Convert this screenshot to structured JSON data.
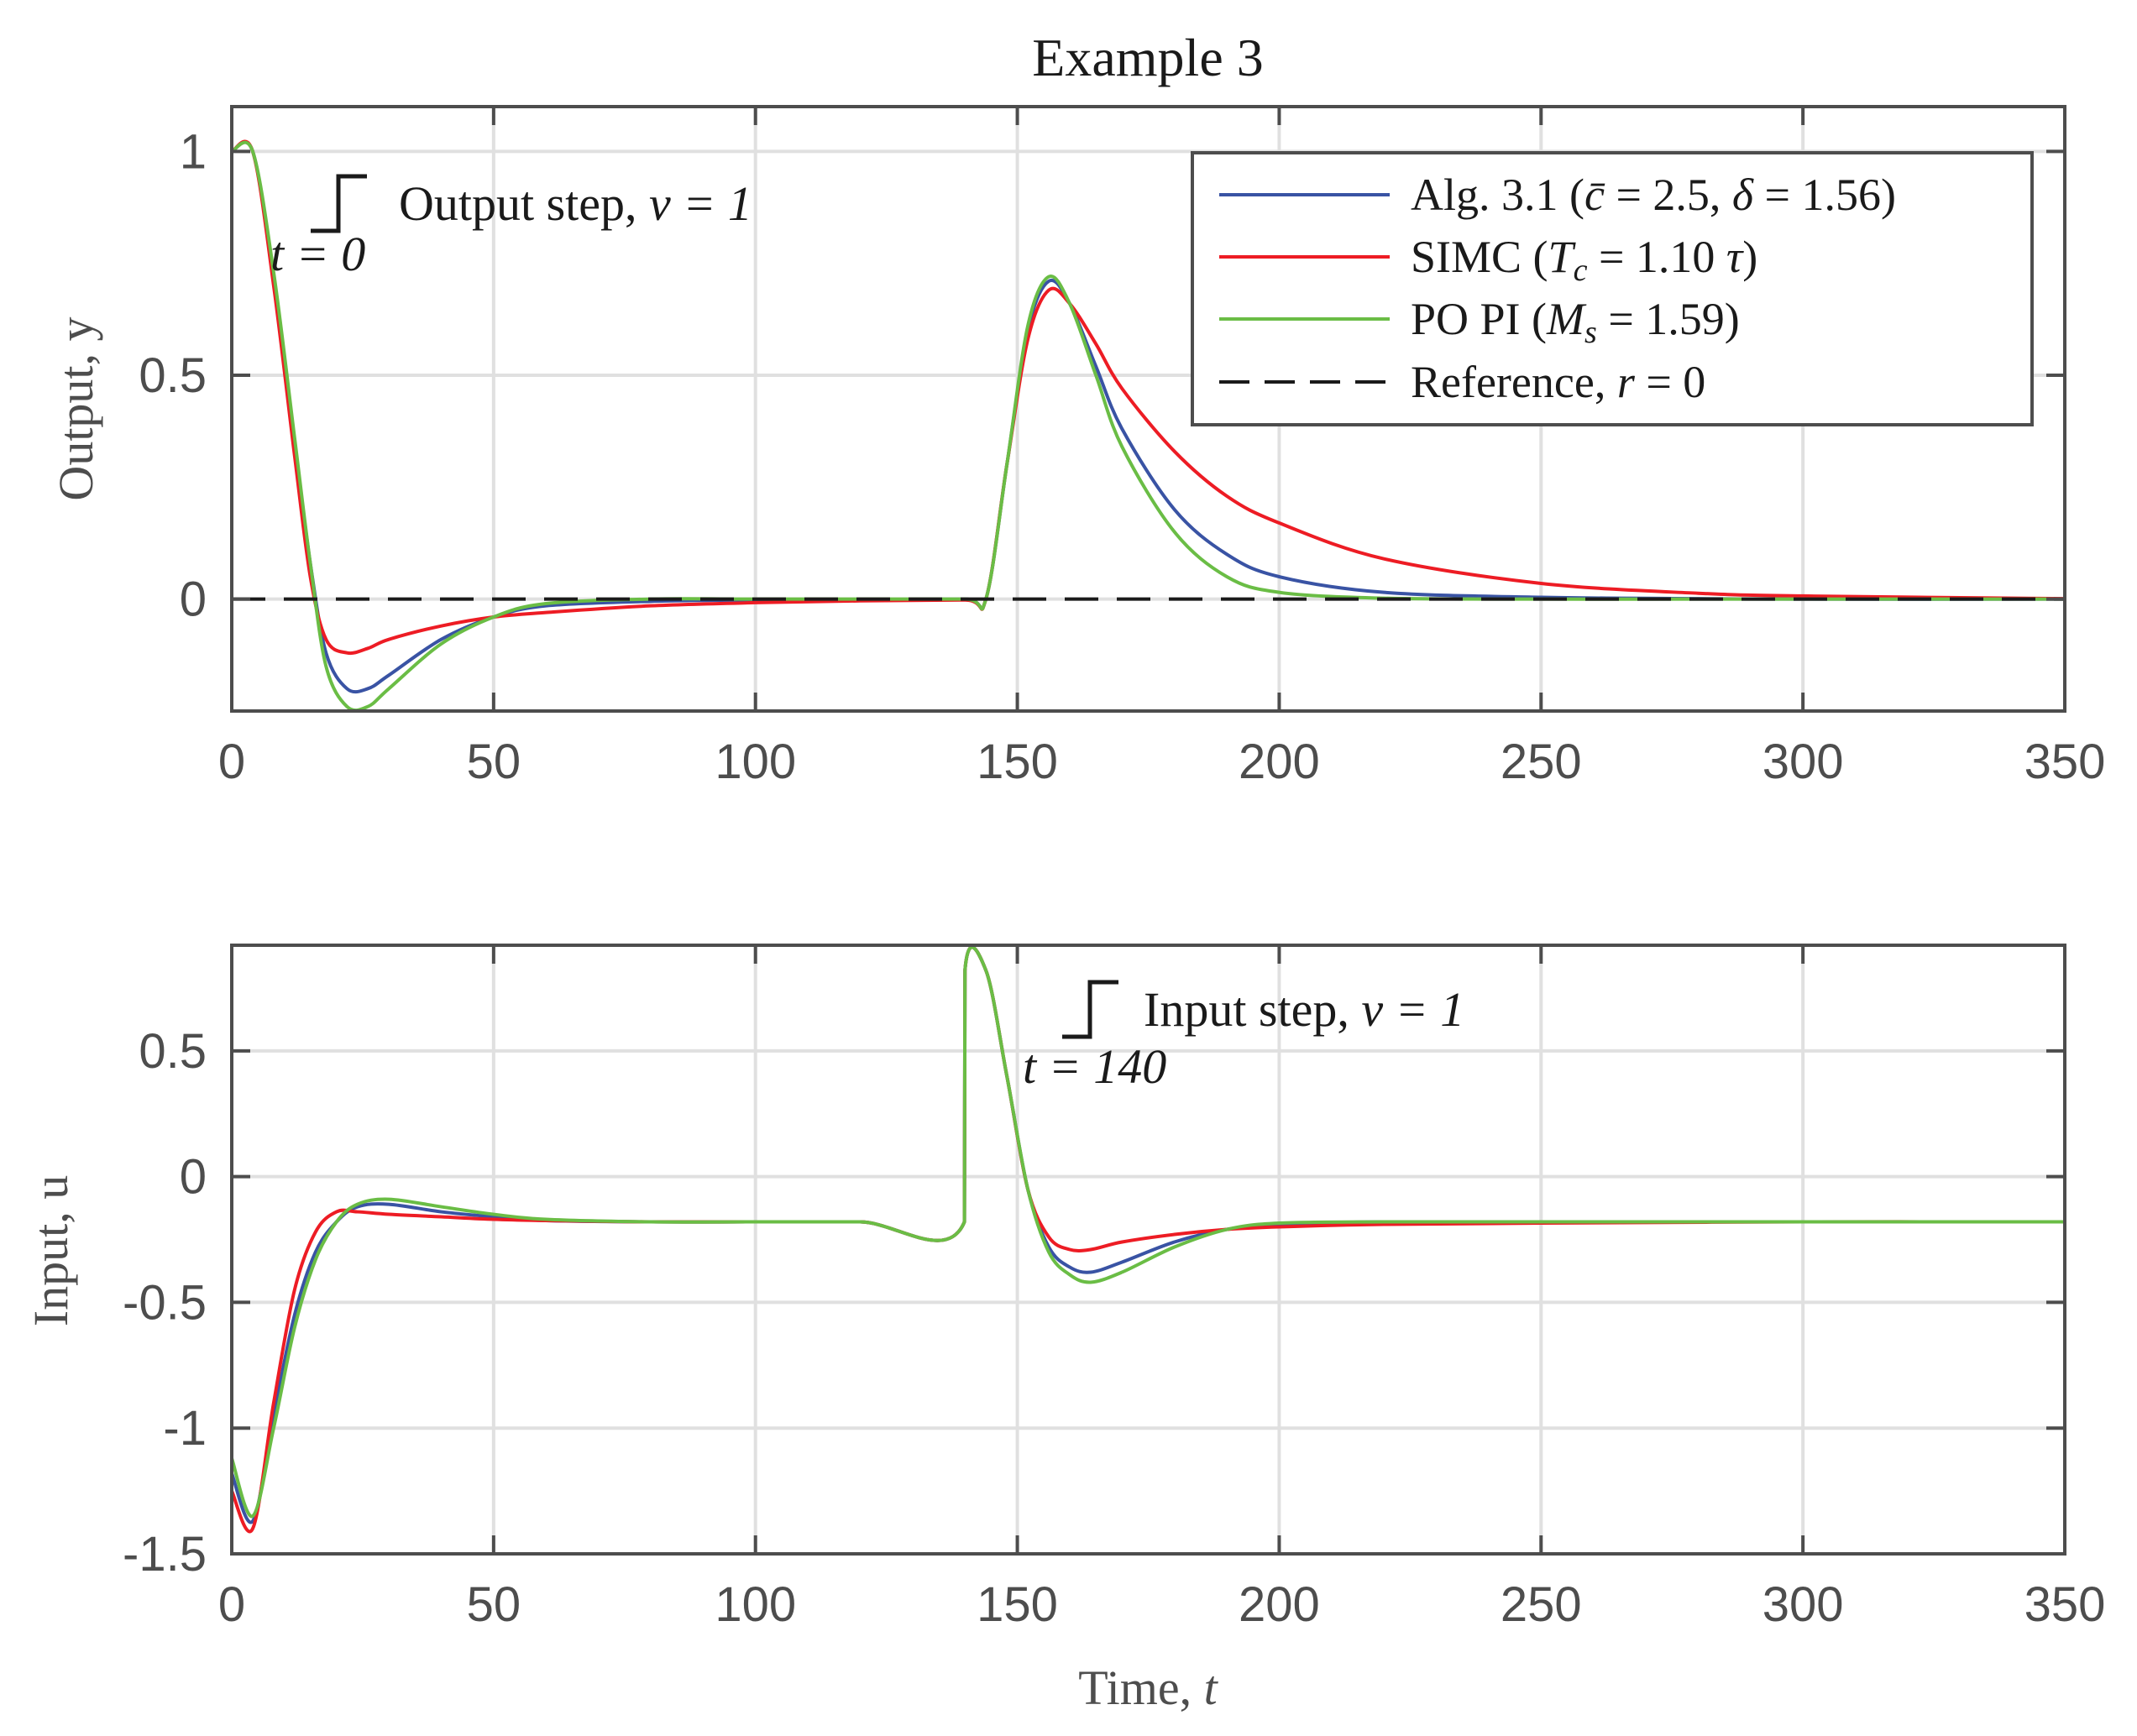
{
  "title": "Example 3",
  "colors": {
    "alg31": "#3953a4",
    "simc": "#ed1c24",
    "popi": "#6abd45",
    "reference": "#1a1a1a",
    "axis": "#4d4d4d",
    "grid": "#e0e0e0"
  },
  "top_panel": {
    "ylabel": "Output, y",
    "yticks": [
      "1",
      "0.5",
      "0"
    ],
    "xticks": [
      "0",
      "50",
      "100",
      "150",
      "200",
      "250",
      "300",
      "350"
    ],
    "annotation_step_label": "Output step, ",
    "annotation_step_eq": "v = 1",
    "annotation_time": "t = 0"
  },
  "bottom_panel": {
    "ylabel": "Input, u",
    "yticks": [
      "0.5",
      "0",
      "-0.5",
      "-1",
      "-1.5"
    ],
    "xticks": [
      "0",
      "50",
      "100",
      "150",
      "200",
      "250",
      "300",
      "350"
    ],
    "xlabel": "Time, ",
    "xlabel_var": "t",
    "annotation_step_label": "Input step, ",
    "annotation_step_eq": "v = 1",
    "annotation_time": "t = 140"
  },
  "legend": [
    {
      "label": "Alg. 3.1 (c̄ = 2.5, δ = 1.56)",
      "style": "solid",
      "color": "#3953a4"
    },
    {
      "label": "SIMC (T_c = 1.10 τ)",
      "style": "solid",
      "color": "#ed1c24"
    },
    {
      "label": "PO PI (M_s = 1.59)",
      "style": "solid",
      "color": "#6abd45"
    },
    {
      "label": "Reference, r = 0",
      "style": "dashed",
      "color": "#1a1a1a"
    }
  ],
  "legend_display": {
    "alg": "Alg. 3.1 (",
    "alg_c": "c̄",
    "alg_mid": " = 2.5, ",
    "alg_d": "δ",
    "alg_end": " = 1.56)",
    "simc": "SIMC (",
    "simc_T": "T",
    "simc_sub": "c",
    "simc_end": " = 1.10 ",
    "simc_tau": "τ",
    "simc_close": ")",
    "popi": "PO PI (",
    "popi_M": "M",
    "popi_sub": "s",
    "popi_end": " = 1.59)",
    "ref": "Reference, ",
    "ref_r": "r",
    "ref_end": " = 0"
  },
  "chart_data": [
    {
      "type": "line",
      "title": "Example 3",
      "xlabel": "",
      "ylabel": "Output, y",
      "xlim": [
        0,
        350
      ],
      "ylim": [
        -0.25,
        1.1
      ],
      "grid": true,
      "legend_position": "upper right",
      "annotations": [
        "Output step, v = 1 at t = 0",
        "t = 0"
      ],
      "x": [
        0,
        4,
        8,
        12,
        15,
        18,
        22,
        26,
        30,
        40,
        50,
        60,
        80,
        100,
        120,
        140,
        144,
        148,
        152,
        156,
        160,
        165,
        170,
        180,
        190,
        200,
        220,
        250,
        280,
        300,
        350
      ],
      "series": [
        {
          "name": "Alg. 3.1 (c̄ = 2.5, δ = 1.56)",
          "color": "#3953a4",
          "values": [
            1,
            1,
            0.72,
            0.35,
            0.08,
            -0.12,
            -0.2,
            -0.2,
            -0.17,
            -0.09,
            -0.04,
            -0.015,
            -0.005,
            -0.002,
            -0.001,
            0,
            0,
            0.3,
            0.6,
            0.71,
            0.66,
            0.52,
            0.38,
            0.2,
            0.1,
            0.05,
            0.015,
            0.004,
            0.001,
            0,
            0
          ]
        },
        {
          "name": "SIMC (Tc = 1.10 τ)",
          "color": "#ed1c24",
          "values": [
            1,
            1,
            0.7,
            0.32,
            0.05,
            -0.09,
            -0.12,
            -0.11,
            -0.09,
            -0.06,
            -0.04,
            -0.03,
            -0.015,
            -0.008,
            -0.004,
            -0.002,
            0,
            0.3,
            0.58,
            0.69,
            0.66,
            0.57,
            0.47,
            0.33,
            0.23,
            0.17,
            0.09,
            0.035,
            0.013,
            0.007,
            0.001
          ]
        },
        {
          "name": "PO PI (Ms = 1.59)",
          "color": "#6abd45",
          "values": [
            1,
            1,
            0.73,
            0.36,
            0.08,
            -0.15,
            -0.24,
            -0.24,
            -0.2,
            -0.1,
            -0.04,
            -0.01,
            0,
            0,
            0,
            0,
            0,
            0.3,
            0.61,
            0.72,
            0.66,
            0.5,
            0.34,
            0.15,
            0.05,
            0.015,
            0.002,
            0,
            0,
            0,
            0
          ]
        },
        {
          "name": "Reference, r = 0",
          "color": "#1a1a1a",
          "style": "dashed",
          "values": [
            0,
            0,
            0,
            0,
            0,
            0,
            0,
            0,
            0,
            0,
            0,
            0,
            0,
            0,
            0,
            0,
            0,
            0,
            0,
            0,
            0,
            0,
            0,
            0,
            0,
            0,
            0,
            0,
            0,
            0,
            0
          ]
        }
      ]
    },
    {
      "type": "line",
      "title": "",
      "xlabel": "Time, t",
      "ylabel": "Input, u",
      "xlim": [
        0,
        350
      ],
      "ylim": [
        -1.5,
        0.92
      ],
      "grid": true,
      "annotations": [
        "Input step, v = 1 at t = 140",
        "t = 140"
      ],
      "x": [
        0,
        4,
        8,
        12,
        16,
        20,
        24,
        30,
        40,
        50,
        60,
        80,
        100,
        120,
        139.9,
        140,
        144,
        148,
        152,
        156,
        160,
        164,
        170,
        180,
        190,
        200,
        220,
        250,
        300,
        350
      ],
      "series": [
        {
          "name": "Alg. 3.1 (c̄ = 2.5, δ = 1.56)",
          "color": "#3953a4",
          "values": [
            -1.18,
            -1.37,
            -0.95,
            -0.55,
            -0.3,
            -0.18,
            -0.12,
            -0.11,
            -0.14,
            -0.16,
            -0.175,
            -0.18,
            -0.18,
            -0.18,
            -0.18,
            0.82,
            0.82,
            0.4,
            -0.05,
            -0.28,
            -0.36,
            -0.38,
            -0.34,
            -0.26,
            -0.21,
            -0.19,
            -0.18,
            -0.18,
            -0.18,
            -0.18
          ]
        },
        {
          "name": "SIMC (Tc = 1.10 τ)",
          "color": "#ed1c24",
          "values": [
            -1.25,
            -1.4,
            -0.9,
            -0.45,
            -0.22,
            -0.14,
            -0.14,
            -0.15,
            -0.16,
            -0.17,
            -0.175,
            -0.18,
            -0.18,
            -0.18,
            -0.18,
            0.82,
            0.82,
            0.4,
            -0.05,
            -0.24,
            -0.29,
            -0.29,
            -0.26,
            -0.23,
            -0.21,
            -0.2,
            -0.19,
            -0.185,
            -0.18,
            -0.18
          ]
        },
        {
          "name": "PO PI (Ms = 1.59)",
          "color": "#6abd45",
          "values": [
            -1.12,
            -1.35,
            -1.0,
            -0.6,
            -0.33,
            -0.18,
            -0.11,
            -0.09,
            -0.12,
            -0.15,
            -0.17,
            -0.18,
            -0.18,
            -0.18,
            -0.18,
            0.82,
            0.82,
            0.4,
            -0.05,
            -0.3,
            -0.39,
            -0.42,
            -0.38,
            -0.28,
            -0.21,
            -0.185,
            -0.18,
            -0.18,
            -0.18,
            -0.18
          ]
        }
      ]
    }
  ]
}
